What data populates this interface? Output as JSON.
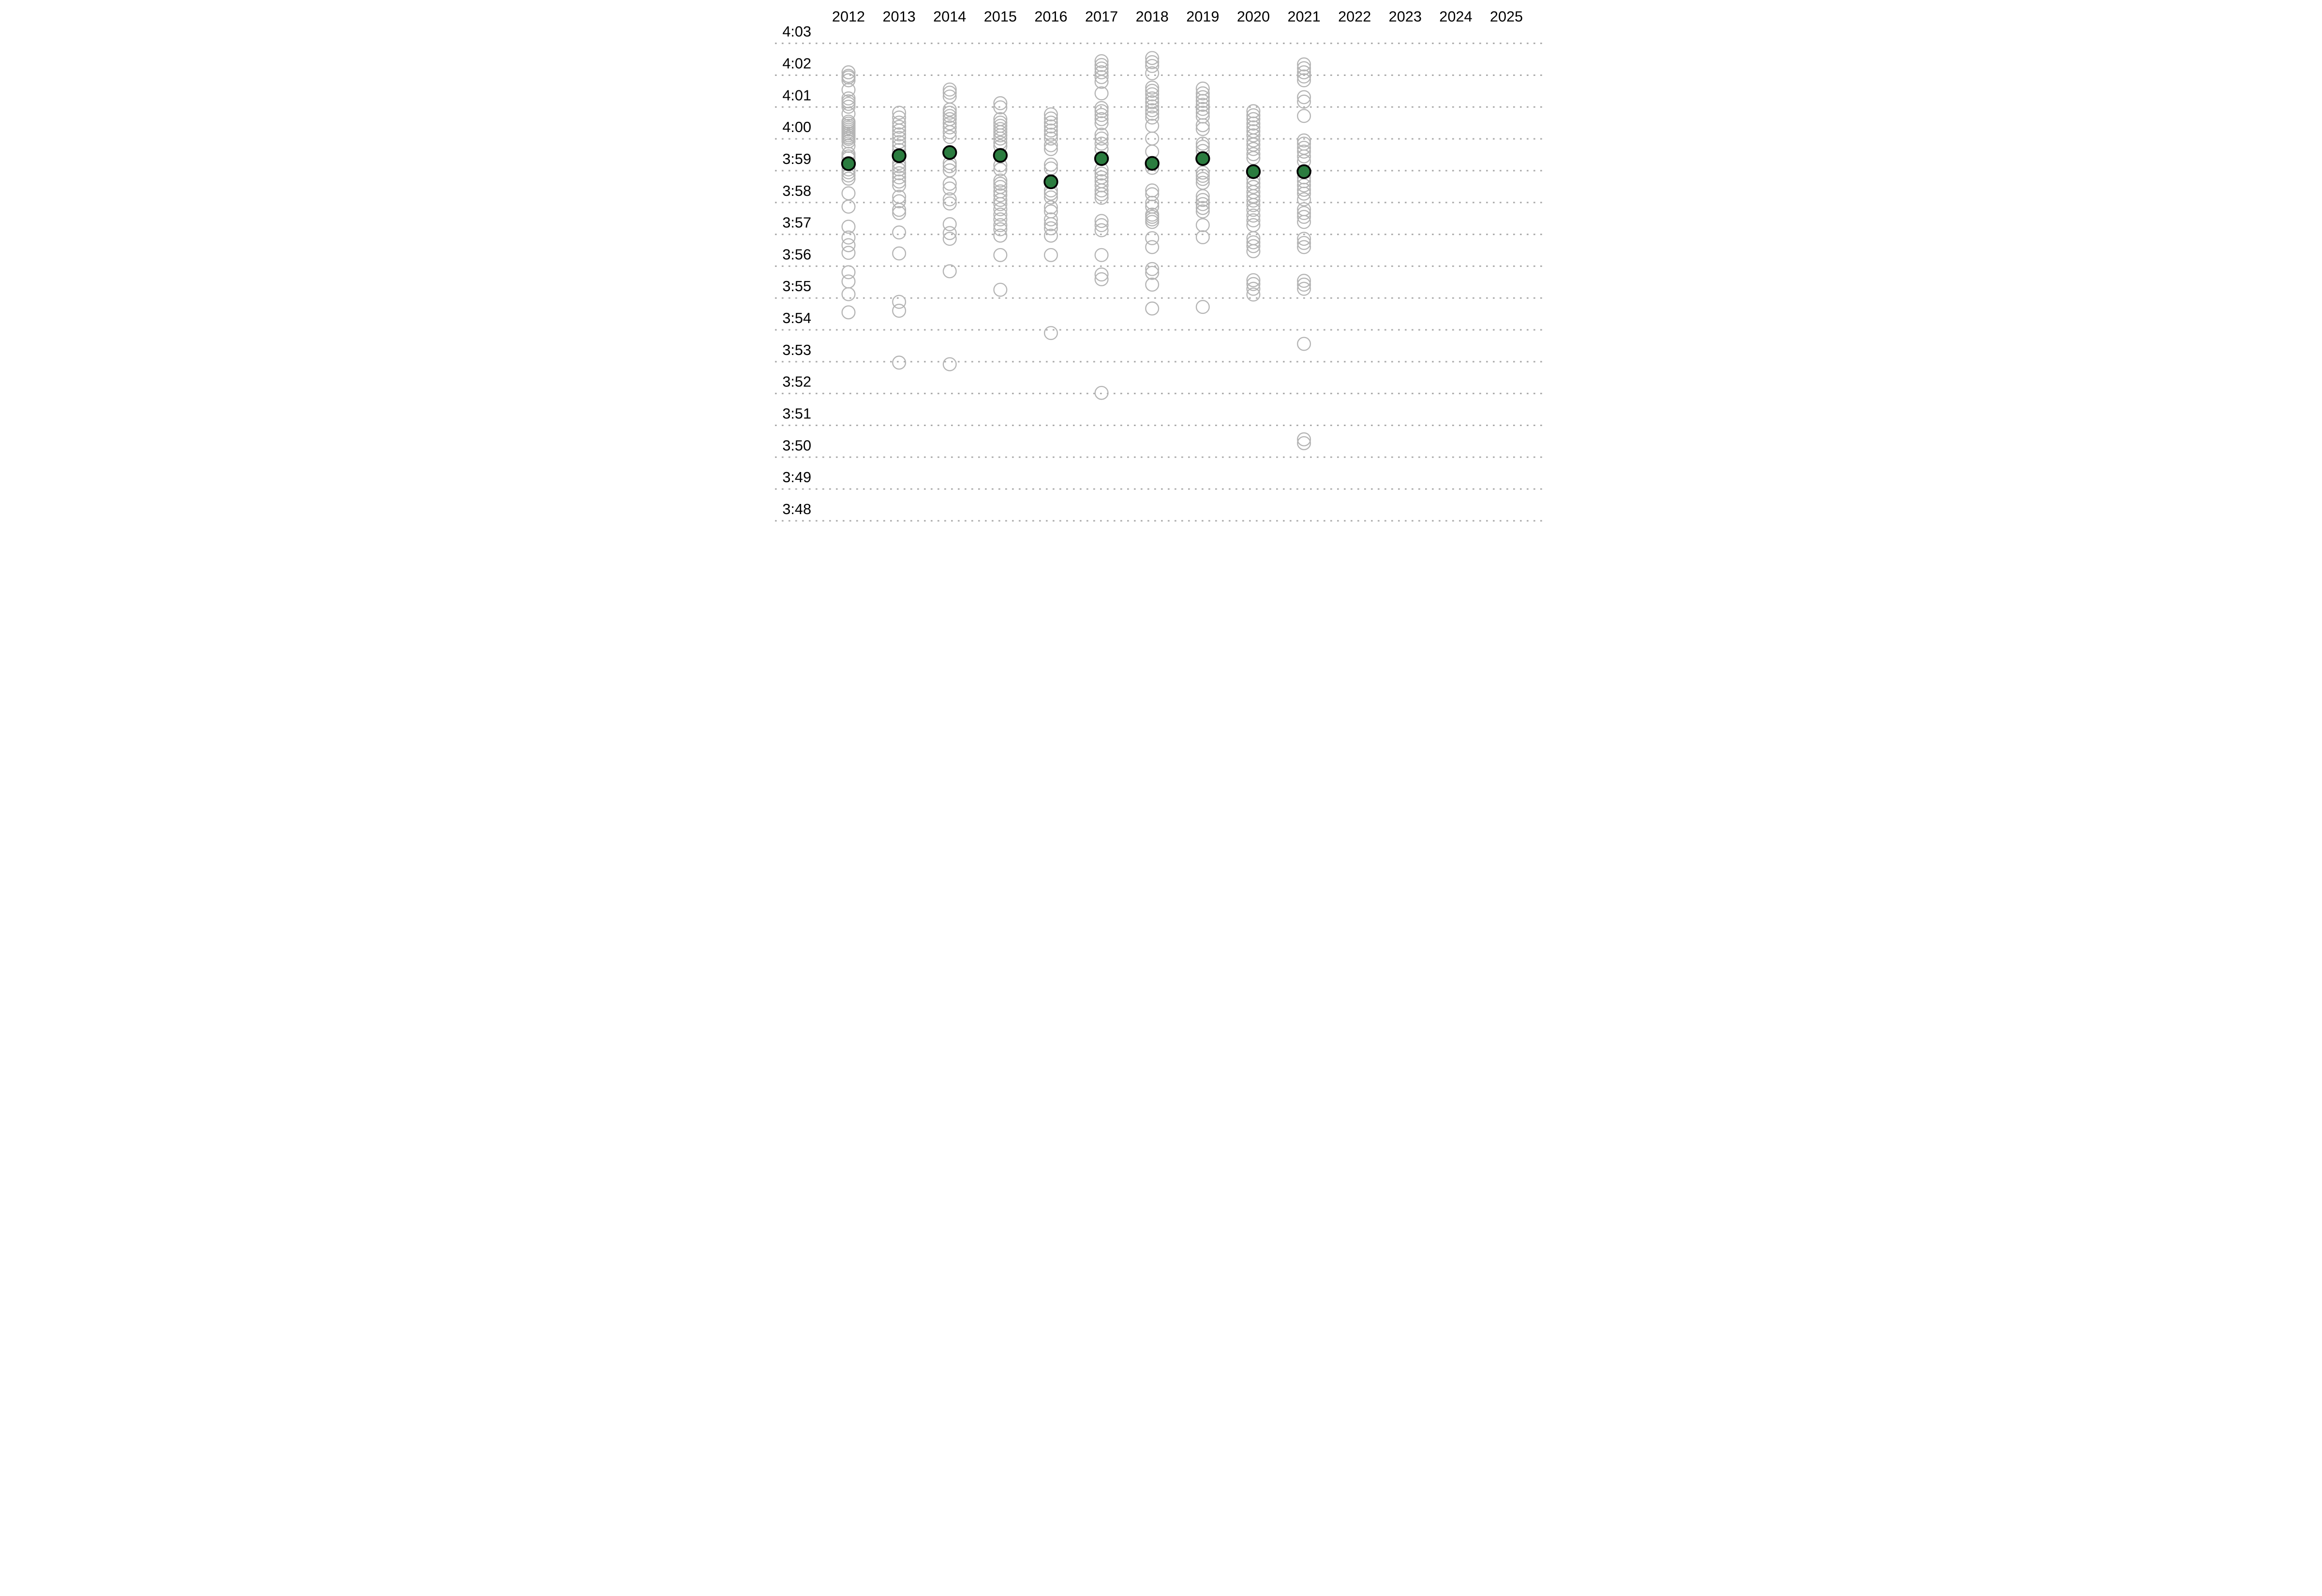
{
  "chart_data": {
    "type": "scatter",
    "description": "Mile race times by year: gray open circles are individual times, green filled circle is the highlighted (median) time for each year.",
    "x_axis": {
      "position": "top",
      "categories": [
        "2012",
        "2013",
        "2014",
        "2015",
        "2016",
        "2017",
        "2018",
        "2019",
        "2020",
        "2021",
        "2022",
        "2023",
        "2024",
        "2025"
      ]
    },
    "y_axis": {
      "tick_labels": [
        "4:03",
        "4:02",
        "4:01",
        "4:00",
        "3:59",
        "3:58",
        "3:57",
        "3:56",
        "3:55",
        "3:54",
        "3:53",
        "3:52",
        "3:51",
        "3:50",
        "3:49",
        "3:48"
      ],
      "top_value_seconds": 243,
      "bottom_value_seconds": 228,
      "unit": "minutes:seconds",
      "grid": "dotted"
    },
    "colors": {
      "grid": "#ababab",
      "open_circle_stroke": "#b4b4b4",
      "median_fill": "#2b7c3f",
      "median_outline": "#000000",
      "text": "#000000",
      "background": "#ffffff"
    },
    "series": [
      {
        "name": "individual-times",
        "marker": "open-circle",
        "points_by_year": {
          "2012": [
            242.09,
            241.98,
            241.93,
            241.84,
            241.54,
            241.27,
            241.18,
            241.1,
            241.01,
            240.79,
            240.54,
            240.48,
            240.41,
            240.35,
            240.29,
            240.23,
            240.17,
            240.11,
            240.05,
            240.0,
            239.92,
            239.78,
            239.53,
            239.45,
            239.39,
            239.04,
            238.95,
            238.85,
            238.75,
            238.29,
            237.87,
            237.24,
            236.9,
            236.66,
            236.42,
            235.81,
            235.52,
            235.12,
            234.55
          ],
          "2013": [
            240.82,
            240.67,
            240.51,
            240.38,
            240.26,
            240.14,
            240.03,
            239.9,
            239.78,
            239.65,
            239.24,
            239.14,
            239.04,
            238.92,
            238.79,
            238.66,
            238.54,
            238.18,
            238.04,
            237.77,
            237.67,
            237.06,
            236.4,
            234.88,
            234.6,
            232.97
          ],
          "2014": [
            241.55,
            241.45,
            241.33,
            240.92,
            240.82,
            240.72,
            240.62,
            240.49,
            240.36,
            240.21,
            240.06,
            239.24,
            239.14,
            239.01,
            238.59,
            238.44,
            238.1,
            237.97,
            237.32,
            237.04,
            236.86,
            235.84,
            232.92
          ],
          "2015": [
            241.12,
            240.99,
            240.62,
            240.51,
            240.41,
            240.31,
            240.21,
            240.11,
            240.01,
            239.88,
            239.77,
            239.17,
            239.04,
            238.69,
            238.59,
            238.49,
            238.35,
            238.23,
            238.08,
            237.95,
            237.79,
            237.62,
            237.47,
            237.29,
            237.16,
            236.96,
            236.35,
            235.26
          ],
          "2016": [
            240.77,
            240.64,
            240.51,
            240.39,
            240.26,
            240.13,
            240.01,
            239.8,
            239.68,
            239.19,
            239.07,
            238.38,
            238.28,
            238.16,
            237.85,
            237.72,
            237.47,
            237.32,
            237.19,
            236.96,
            236.35,
            233.9
          ],
          "2017": [
            242.44,
            242.32,
            242.21,
            242.09,
            241.94,
            241.79,
            241.43,
            240.97,
            240.87,
            240.75,
            240.62,
            240.49,
            240.13,
            240.01,
            239.85,
            239.68,
            239.04,
            238.91,
            238.79,
            238.67,
            238.54,
            238.38,
            238.26,
            238.15,
            237.42,
            237.29,
            237.13,
            236.35,
            235.74,
            235.59,
            232.02
          ],
          "2018": [
            242.54,
            242.41,
            242.29,
            242.06,
            241.61,
            241.51,
            241.4,
            241.27,
            241.15,
            241.02,
            240.9,
            240.79,
            240.67,
            240.41,
            240.01,
            239.6,
            239.09,
            238.38,
            238.26,
            237.99,
            237.87,
            237.62,
            237.55,
            237.47,
            237.39,
            236.88,
            236.6,
            235.91,
            235.79,
            235.42,
            234.67
          ],
          "2019": [
            241.58,
            241.43,
            241.31,
            241.19,
            241.07,
            240.94,
            240.82,
            240.7,
            240.43,
            240.31,
            239.85,
            239.75,
            239.62,
            238.94,
            238.84,
            238.74,
            238.62,
            238.2,
            238.08,
            237.95,
            237.83,
            237.72,
            237.29,
            236.91,
            234.72
          ],
          "2020": [
            240.87,
            240.74,
            240.62,
            240.48,
            240.36,
            240.24,
            240.11,
            239.95,
            239.82,
            239.68,
            239.52,
            239.4,
            238.74,
            238.61,
            238.49,
            238.33,
            238.2,
            238.06,
            237.92,
            237.77,
            237.59,
            237.44,
            237.29,
            236.88,
            236.75,
            236.63,
            236.47,
            235.56,
            235.44,
            235.29,
            235.11
          ],
          "2021": [
            242.34,
            242.22,
            242.09,
            241.96,
            241.84,
            241.31,
            241.17,
            240.72,
            239.95,
            239.85,
            239.72,
            239.6,
            239.45,
            239.3,
            238.79,
            238.67,
            238.54,
            238.4,
            238.28,
            238.1,
            237.79,
            237.67,
            237.55,
            237.39,
            236.86,
            236.73,
            236.6,
            235.54,
            235.42,
            235.29,
            233.56,
            230.56,
            230.44
          ],
          "2022": [],
          "2023": [],
          "2024": [],
          "2025": []
        }
      },
      {
        "name": "highlighted-median-time",
        "marker": "filled-circle",
        "points": [
          {
            "year": "2012",
            "seconds": 239.22,
            "time": "3:59.2"
          },
          {
            "year": "2013",
            "seconds": 239.47,
            "time": "3:59.5"
          },
          {
            "year": "2014",
            "seconds": 239.57,
            "time": "3:59.6"
          },
          {
            "year": "2015",
            "seconds": 239.48,
            "time": "3:59.5"
          },
          {
            "year": "2016",
            "seconds": 238.65,
            "time": "3:58.7"
          },
          {
            "year": "2017",
            "seconds": 239.38,
            "time": "3:59.4"
          },
          {
            "year": "2018",
            "seconds": 239.23,
            "time": "3:59.2"
          },
          {
            "year": "2019",
            "seconds": 239.38,
            "time": "3:59.4"
          },
          {
            "year": "2020",
            "seconds": 238.97,
            "time": "3:59.0"
          },
          {
            "year": "2021",
            "seconds": 238.97,
            "time": "3:59.0"
          }
        ]
      }
    ]
  }
}
